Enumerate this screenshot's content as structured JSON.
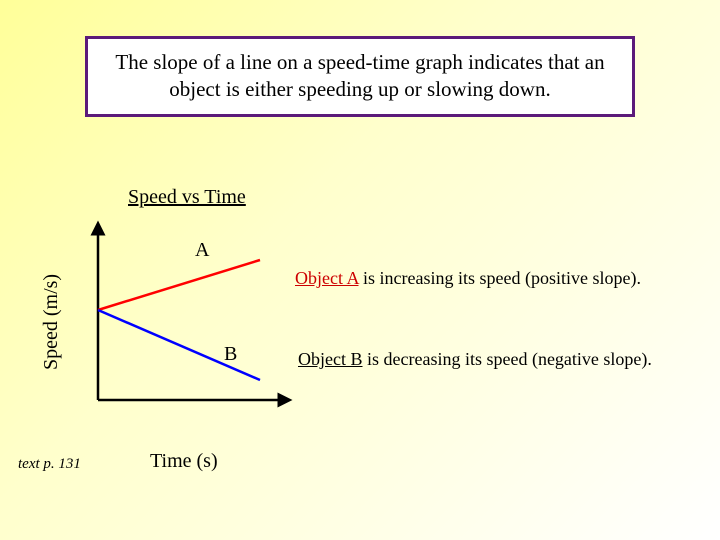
{
  "header": {
    "text": "The slope of a line on a speed-time graph indicates that an object is either speeding up or slowing down.",
    "border_color": "#5b1a7a",
    "bg_color": "#ffffff",
    "font_size": 21,
    "text_color": "#000000"
  },
  "chart": {
    "title": "Speed vs Time",
    "y_axis_label": "Speed (m/s)",
    "x_axis_label": "Time (s)",
    "label_a": "A",
    "label_b": "B",
    "axis_color": "#000000",
    "axis_width": 2.5,
    "arrow_size": 10,
    "xlim": [
      0,
      200
    ],
    "ylim": [
      0,
      180
    ],
    "lines": [
      {
        "id": "A",
        "color": "#ff0000",
        "width": 2.5,
        "x1": 18,
        "y1": 90,
        "x2": 180,
        "y2": 40
      },
      {
        "id": "B",
        "color": "#0000ff",
        "width": 2.5,
        "x1": 18,
        "y1": 90,
        "x2": 180,
        "y2": 160
      }
    ]
  },
  "annotations": {
    "a": {
      "lead": "Object A",
      "lead_color": "#cc0000",
      "rest": " is increasing its speed (positive slope).",
      "rest_color": "#000000"
    },
    "b": {
      "lead": "Object B",
      "lead_color": "#000000",
      "rest": " is decreasing its speed (negative slope).",
      "rest_color": "#000000"
    }
  },
  "footnote": "text p. 131",
  "page_bg_gradient": [
    "#ffff99",
    "#ffffff"
  ]
}
